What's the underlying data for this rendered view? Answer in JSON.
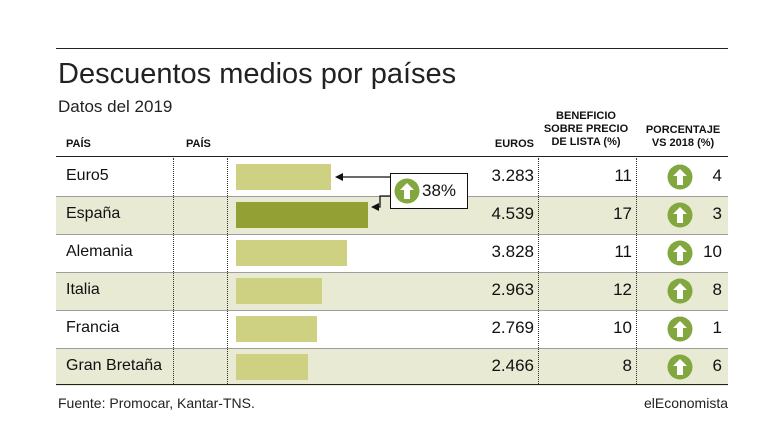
{
  "title": "Descuentos medios por países",
  "subtitle": "Datos del 2019",
  "headers": {
    "pais": "PAÍS",
    "pais2": "PAÍS",
    "euros": "EUROS",
    "beneficio_l1": "BENEFICIO",
    "beneficio_l2": "SOBRE PRECIO",
    "beneficio_l3": "DE LISTA (%)",
    "porcentaje_l1": "PORCENTAJE",
    "porcentaje_l2": "VS 2018 (%)"
  },
  "callout": {
    "label": "38%",
    "icon": "up-arrow-circle-icon"
  },
  "colors": {
    "bar": "#cfd182",
    "bar_highlight": "#93a034",
    "row_shade": "#e8ead3",
    "icon": "#82a73f"
  },
  "chart_data": {
    "type": "bar",
    "categories": [
      "Euro5",
      "España",
      "Alemania",
      "Italia",
      "Francia",
      "Gran Bretaña"
    ],
    "series": [
      {
        "values": [
          3283,
          4539,
          3828,
          2963,
          2769,
          2466
        ]
      }
    ],
    "highlight": "España",
    "table": {
      "euros": [
        "3.283",
        "4.539",
        "3.828",
        "2.963",
        "2.769",
        "2.466"
      ],
      "beneficio": [
        "11",
        "17",
        "11",
        "12",
        "10",
        "8"
      ],
      "porcentaje": [
        "4",
        "3",
        "10",
        "8",
        "1",
        "6"
      ]
    },
    "annotation": "38%"
  },
  "footer": {
    "source": "Fuente: Promocar, Kantar-TNS.",
    "brand": "elEconomista"
  }
}
